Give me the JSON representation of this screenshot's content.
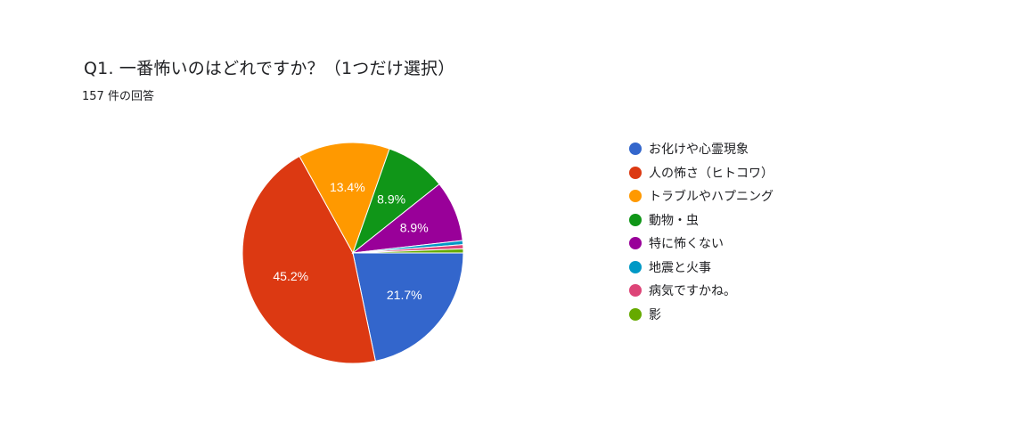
{
  "question": {
    "title": "Q1. 一番怖いのはどれですか？（1つだけ選択）",
    "response_count": "157 件の回答"
  },
  "chart_data": {
    "type": "pie",
    "categories": [
      "お化けや心霊現象",
      "人の怖さ（ヒトコワ）",
      "トラブルやハプニング",
      "動物・虫",
      "特に怖くない",
      "地震と火事",
      "病気ですかね。",
      "影"
    ],
    "values": [
      21.7,
      45.2,
      13.4,
      8.9,
      8.9,
      0.6,
      0.6,
      0.6
    ],
    "labels": [
      "21.7%",
      "45.2%",
      "13.4%",
      "8.9%",
      "8.9%",
      "",
      "",
      ""
    ],
    "colors": [
      "#3366cc",
      "#dc3912",
      "#ff9900",
      "#109618",
      "#990099",
      "#0099c6",
      "#dd4477",
      "#66aa00"
    ],
    "start_angle_deg": 90,
    "direction": "clockwise",
    "legend_position": "right"
  }
}
